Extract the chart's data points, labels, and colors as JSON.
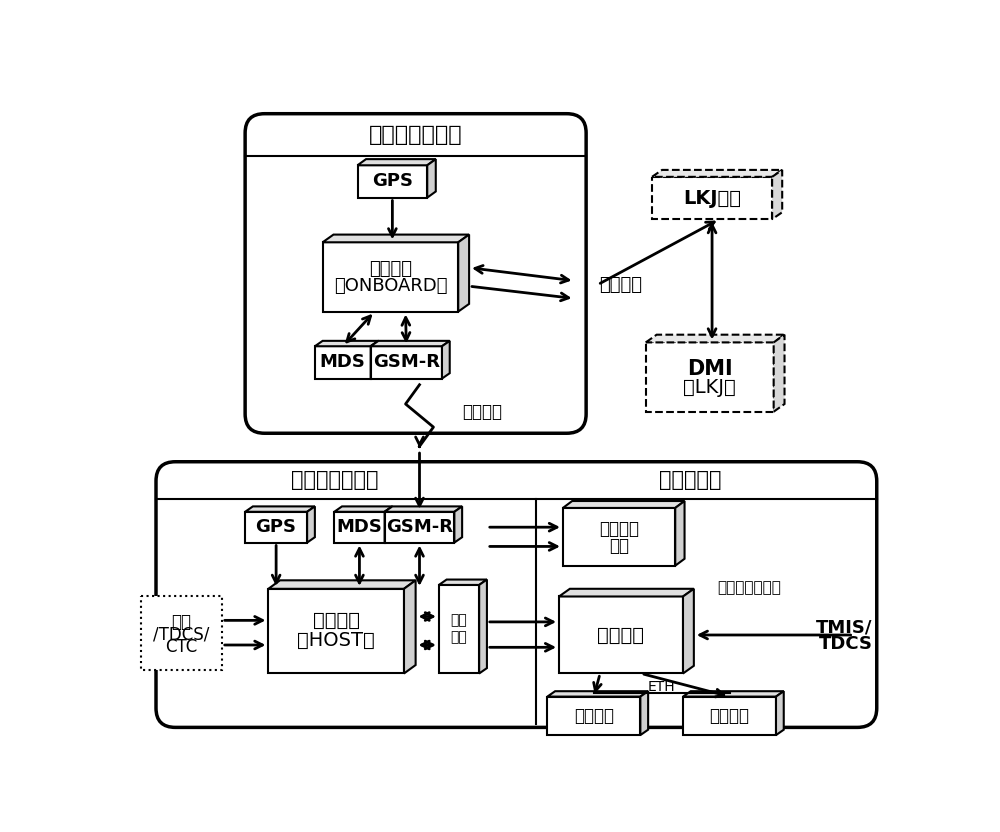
{
  "bg_color": "#ffffff",
  "top_subsystem_label": "车载主机子系统",
  "ground_subsystem_label": "地面主机子系统",
  "terminal_subsystem_label": "终端子系统",
  "gps_top_label": "GPS",
  "onboard_line1": "车载主机",
  "onboard_line2": "（ONBOARD）",
  "mds_top_label": "MDS",
  "gsmr_top_label": "GSM-R",
  "monitor_label": "监控分机",
  "lkj_host_label": "LKJ主机",
  "dmi_line1": "DMI",
  "dmi_line2": "（LKJ）",
  "wireless_label": "无线传输",
  "gps_ground_label": "GPS",
  "mds_ground_label": "MDS",
  "gsmr_ground_label": "GSM-R",
  "host_line1": "地面主机",
  "host_line2": "（HOST）",
  "network_line1": "网络",
  "network_line2": "交换",
  "interlock_line1": "联锁",
  "interlock_line2": "/TDCS/",
  "interlock_line3": "CTC",
  "elec_line1": "电务维护",
  "elec_line2": "终端",
  "car_terminal_label": "车务终端",
  "station_terminal_label": "站调终端",
  "view_terminal_label": "查看终端",
  "shunting_notice_label": "调车作业通知单",
  "tmis_line1": "TMIS/",
  "tmis_line2": "TDCS",
  "eth_label": "ETH"
}
